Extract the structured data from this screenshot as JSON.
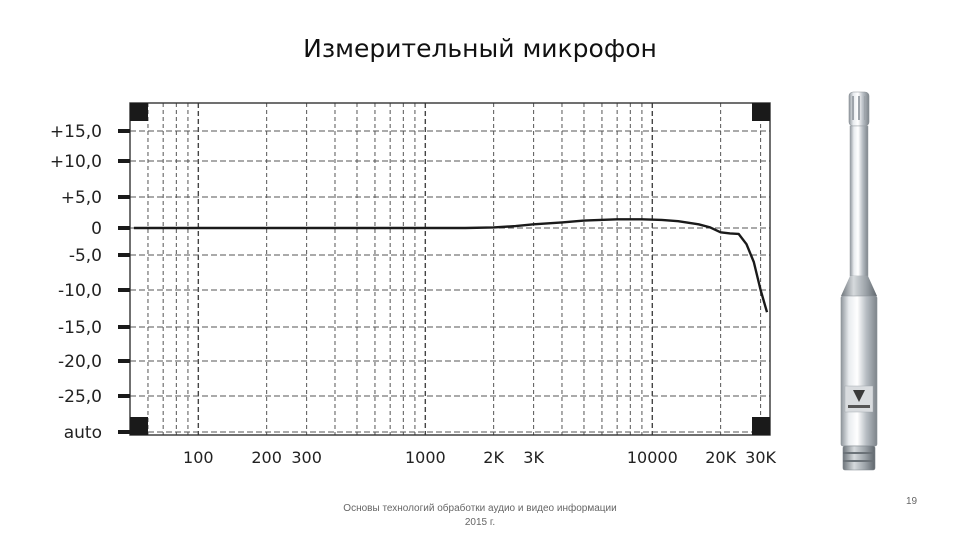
{
  "slide": {
    "title": "Измерительный микрофон",
    "footer_line1": "Основы технологий обработки аудио и видео информации",
    "footer_line2": "2015 г.",
    "page_number": "19"
  },
  "chart_data": {
    "type": "line",
    "title": "",
    "xlabel": "",
    "ylabel": "",
    "x_scale": "log",
    "xlim": [
      50,
      33000
    ],
    "x_ticks": [
      {
        "value": 100,
        "label": "100"
      },
      {
        "value": 200,
        "label": "200"
      },
      {
        "value": 300,
        "label": "300"
      },
      {
        "value": 1000,
        "label": "1000"
      },
      {
        "value": 2000,
        "label": "2K"
      },
      {
        "value": 3000,
        "label": "3K"
      },
      {
        "value": 10000,
        "label": "10000"
      },
      {
        "value": 20000,
        "label": "20K"
      },
      {
        "value": 30000,
        "label": "30K"
      }
    ],
    "y_ticks": [
      "+15,0",
      "+10,0",
      "+5,0",
      "0",
      "-5,0",
      "-10,0",
      "-15,0",
      "-20,0",
      "-25,0",
      "auto"
    ],
    "y_tick_values": [
      15,
      10,
      5,
      0,
      -5,
      -10,
      -15,
      -20,
      -25
    ],
    "grid": true,
    "series": [
      {
        "name": "",
        "color": "#1a1a1a",
        "points": [
          [
            52,
            0
          ],
          [
            100,
            0
          ],
          [
            200,
            0
          ],
          [
            500,
            0
          ],
          [
            1000,
            0
          ],
          [
            1500,
            0
          ],
          [
            2000,
            0.1
          ],
          [
            2500,
            0.3
          ],
          [
            3000,
            0.6
          ],
          [
            4000,
            0.9
          ],
          [
            5000,
            1.2
          ],
          [
            7000,
            1.4
          ],
          [
            9000,
            1.4
          ],
          [
            11000,
            1.3
          ],
          [
            13000,
            1.1
          ],
          [
            16000,
            0.6
          ],
          [
            18000,
            0.1
          ],
          [
            20000,
            -0.8
          ],
          [
            22000,
            -1.0
          ],
          [
            24000,
            -1.1
          ],
          [
            26000,
            -3.0
          ],
          [
            28000,
            -6.0
          ],
          [
            30000,
            -10.0
          ],
          [
            32000,
            -13.0
          ]
        ]
      }
    ]
  }
}
